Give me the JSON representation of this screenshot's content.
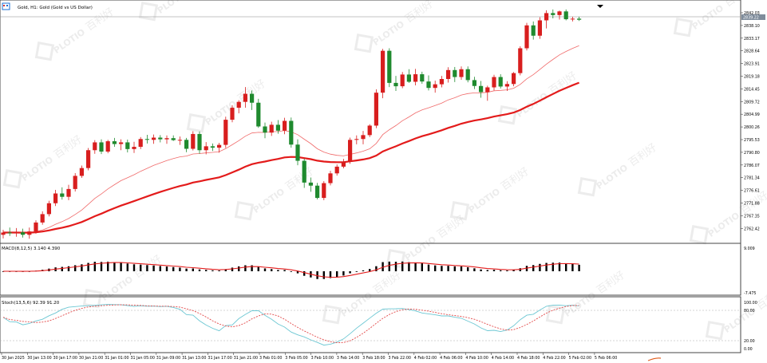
{
  "window": {
    "title": "Gold, H1:  Gold (Gold vs US Dollar)",
    "icon": "window-menu-icon"
  },
  "colors": {
    "bull": "#d81e1e",
    "bear": "#1f8a2e",
    "ma_slow": "#e31b1b",
    "ma_fast": "#f06a6a",
    "macd_hist": "#000000",
    "macd_signal": "#e31b1b",
    "stoch_main": "#6cc7d3",
    "stoch_signal": "#e34a4a",
    "grid_border": "#444444",
    "watermark": "#c9c9c9"
  },
  "watermark": {
    "logo_text": "PLOTIO",
    "cn_text": "百利好"
  },
  "price_axis": {
    "labels": [
      "2842.03",
      "2838.10",
      "2833.17",
      "2828.64",
      "2823.91",
      "2819.18",
      "2814.45",
      "2809.72",
      "2804.99",
      "2800.26",
      "2795.53",
      "2790.80",
      "2786.07",
      "2781.34",
      "2776.61",
      "2771.88",
      "2767.35",
      "2762.42"
    ],
    "current_price": "2839.22"
  },
  "macd": {
    "label": "MACD(8,12,5) 3.140 4.390",
    "axis_labels": [
      "9.009",
      "-7.475"
    ]
  },
  "stoch": {
    "label": "Stoch(13,5,6) 92.39 91.20",
    "axis_labels": [
      "100.00",
      "80.00",
      "20.00",
      "0.00"
    ]
  },
  "time_axis": {
    "labels": [
      "30 Jan 2025",
      "30 Jan 13:00",
      "30 Jan 17:00",
      "30 Jan 21:00",
      "31 Jan 01:00",
      "31 Jan 05:00",
      "31 Jan 09:00",
      "31 Jan 13:00",
      "31 Jan 17:00",
      "31 Jan 21:00",
      "3 Feb 01:00",
      "3 Feb 05:00",
      "3 Feb 10:00",
      "3 Feb 14:00",
      "3 Feb 18:00",
      "3 Feb 22:00",
      "4 Feb 02:00",
      "4 Feb 06:00",
      "4 Feb 10:00",
      "4 Feb 14:00",
      "4 Feb 18:00",
      "4 Feb 22:00",
      "5 Feb 02:00",
      "5 Feb 06:00"
    ]
  },
  "chart_data": {
    "type": "candlestick",
    "ylim": [
      2760.0,
      2844.0
    ],
    "candles": [
      {
        "o": 2762.2,
        "h": 2764.0,
        "l": 2760.9,
        "c": 2763.0
      },
      {
        "o": 2763.0,
        "h": 2764.8,
        "l": 2761.8,
        "c": 2762.8
      },
      {
        "o": 2762.8,
        "h": 2764.6,
        "l": 2761.5,
        "c": 2763.1
      },
      {
        "o": 2763.1,
        "h": 2764.4,
        "l": 2761.2,
        "c": 2762.2
      },
      {
        "o": 2762.2,
        "h": 2764.8,
        "l": 2760.8,
        "c": 2763.4
      },
      {
        "o": 2763.4,
        "h": 2767.4,
        "l": 2762.6,
        "c": 2766.6
      },
      {
        "o": 2766.6,
        "h": 2770.6,
        "l": 2765.8,
        "c": 2769.6
      },
      {
        "o": 2769.6,
        "h": 2774.4,
        "l": 2768.8,
        "c": 2773.5
      },
      {
        "o": 2773.5,
        "h": 2778.3,
        "l": 2772.5,
        "c": 2777.0
      },
      {
        "o": 2777.0,
        "h": 2779.2,
        "l": 2774.8,
        "c": 2775.8
      },
      {
        "o": 2775.8,
        "h": 2780.1,
        "l": 2774.6,
        "c": 2778.6
      },
      {
        "o": 2778.6,
        "h": 2784.3,
        "l": 2777.7,
        "c": 2783.3
      },
      {
        "o": 2783.3,
        "h": 2787.0,
        "l": 2782.6,
        "c": 2786.1
      },
      {
        "o": 2786.1,
        "h": 2793.3,
        "l": 2785.3,
        "c": 2792.5
      },
      {
        "o": 2792.5,
        "h": 2796.1,
        "l": 2791.2,
        "c": 2795.3
      },
      {
        "o": 2795.3,
        "h": 2796.4,
        "l": 2791.1,
        "c": 2792.0
      },
      {
        "o": 2792.0,
        "h": 2796.2,
        "l": 2791.4,
        "c": 2795.7
      },
      {
        "o": 2795.7,
        "h": 2796.9,
        "l": 2793.7,
        "c": 2794.7
      },
      {
        "o": 2794.7,
        "h": 2796.4,
        "l": 2792.5,
        "c": 2795.3
      },
      {
        "o": 2795.3,
        "h": 2796.3,
        "l": 2791.7,
        "c": 2792.9
      },
      {
        "o": 2792.9,
        "h": 2795.5,
        "l": 2791.5,
        "c": 2793.7
      },
      {
        "o": 2793.7,
        "h": 2797.2,
        "l": 2792.9,
        "c": 2796.5
      },
      {
        "o": 2796.5,
        "h": 2798.0,
        "l": 2794.9,
        "c": 2796.2
      },
      {
        "o": 2796.2,
        "h": 2798.1,
        "l": 2794.8,
        "c": 2797.0
      },
      {
        "o": 2797.0,
        "h": 2797.9,
        "l": 2795.3,
        "c": 2796.4
      },
      {
        "o": 2796.4,
        "h": 2797.8,
        "l": 2794.8,
        "c": 2796.8
      },
      {
        "o": 2796.8,
        "h": 2797.8,
        "l": 2795.8,
        "c": 2796.1
      },
      {
        "o": 2796.1,
        "h": 2797.4,
        "l": 2794.4,
        "c": 2796.2
      },
      {
        "o": 2796.2,
        "h": 2796.9,
        "l": 2791.8,
        "c": 2793.0
      },
      {
        "o": 2793.0,
        "h": 2799.3,
        "l": 2792.4,
        "c": 2798.3
      },
      {
        "o": 2798.3,
        "h": 2799.2,
        "l": 2791.2,
        "c": 2792.5
      },
      {
        "o": 2792.5,
        "h": 2795.4,
        "l": 2791.0,
        "c": 2793.9
      },
      {
        "o": 2793.9,
        "h": 2794.9,
        "l": 2792.2,
        "c": 2793.4
      },
      {
        "o": 2793.4,
        "h": 2795.1,
        "l": 2791.6,
        "c": 2794.4
      },
      {
        "o": 2794.4,
        "h": 2804.5,
        "l": 2793.3,
        "c": 2803.4
      },
      {
        "o": 2803.4,
        "h": 2808.6,
        "l": 2802.5,
        "c": 2807.7
      },
      {
        "o": 2807.7,
        "h": 2810.4,
        "l": 2805.7,
        "c": 2809.8
      },
      {
        "o": 2809.8,
        "h": 2815.1,
        "l": 2807.7,
        "c": 2812.7
      },
      {
        "o": 2812.7,
        "h": 2813.9,
        "l": 2806.9,
        "c": 2809.5
      },
      {
        "o": 2809.5,
        "h": 2810.9,
        "l": 2800.5,
        "c": 2801.0
      },
      {
        "o": 2801.0,
        "h": 2802.4,
        "l": 2796.8,
        "c": 2798.8
      },
      {
        "o": 2798.8,
        "h": 2802.7,
        "l": 2797.6,
        "c": 2801.6
      },
      {
        "o": 2801.6,
        "h": 2803.3,
        "l": 2798.4,
        "c": 2799.5
      },
      {
        "o": 2799.5,
        "h": 2804.1,
        "l": 2798.2,
        "c": 2803.0
      },
      {
        "o": 2803.0,
        "h": 2804.2,
        "l": 2793.4,
        "c": 2794.5
      },
      {
        "o": 2794.5,
        "h": 2796.4,
        "l": 2787.1,
        "c": 2788.7
      },
      {
        "o": 2788.7,
        "h": 2789.5,
        "l": 2779.0,
        "c": 2780.9
      },
      {
        "o": 2780.9,
        "h": 2782.7,
        "l": 2777.6,
        "c": 2779.8
      },
      {
        "o": 2779.8,
        "h": 2780.8,
        "l": 2774.9,
        "c": 2775.4
      },
      {
        "o": 2775.4,
        "h": 2781.4,
        "l": 2774.6,
        "c": 2780.7
      },
      {
        "o": 2780.7,
        "h": 2785.1,
        "l": 2779.9,
        "c": 2784.2
      },
      {
        "o": 2784.2,
        "h": 2787.4,
        "l": 2783.4,
        "c": 2786.6
      },
      {
        "o": 2786.6,
        "h": 2789.4,
        "l": 2786.0,
        "c": 2788.4
      },
      {
        "o": 2788.4,
        "h": 2797.0,
        "l": 2787.6,
        "c": 2796.2
      },
      {
        "o": 2796.2,
        "h": 2797.8,
        "l": 2794.6,
        "c": 2796.5
      },
      {
        "o": 2796.5,
        "h": 2799.4,
        "l": 2794.6,
        "c": 2797.9
      },
      {
        "o": 2797.9,
        "h": 2801.8,
        "l": 2797.2,
        "c": 2801.3
      },
      {
        "o": 2801.3,
        "h": 2814.3,
        "l": 2800.4,
        "c": 2813.1
      },
      {
        "o": 2813.1,
        "h": 2828.8,
        "l": 2811.1,
        "c": 2828.1
      },
      {
        "o": 2828.1,
        "h": 2829.0,
        "l": 2815.1,
        "c": 2816.6
      },
      {
        "o": 2816.6,
        "h": 2819.1,
        "l": 2813.7,
        "c": 2815.4
      },
      {
        "o": 2815.4,
        "h": 2820.5,
        "l": 2814.7,
        "c": 2819.6
      },
      {
        "o": 2819.6,
        "h": 2821.5,
        "l": 2816.6,
        "c": 2817.0
      },
      {
        "o": 2817.0,
        "h": 2821.6,
        "l": 2815.7,
        "c": 2819.7
      },
      {
        "o": 2819.7,
        "h": 2820.6,
        "l": 2816.3,
        "c": 2817.1
      },
      {
        "o": 2817.1,
        "h": 2819.3,
        "l": 2813.9,
        "c": 2814.8
      },
      {
        "o": 2814.8,
        "h": 2817.4,
        "l": 2813.1,
        "c": 2816.1
      },
      {
        "o": 2816.1,
        "h": 2819.1,
        "l": 2815.0,
        "c": 2818.0
      },
      {
        "o": 2818.0,
        "h": 2822.2,
        "l": 2816.7,
        "c": 2821.2
      },
      {
        "o": 2821.2,
        "h": 2822.3,
        "l": 2816.9,
        "c": 2818.7
      },
      {
        "o": 2818.7,
        "h": 2822.5,
        "l": 2817.7,
        "c": 2821.5
      },
      {
        "o": 2821.5,
        "h": 2822.5,
        "l": 2816.8,
        "c": 2817.6
      },
      {
        "o": 2817.6,
        "h": 2818.8,
        "l": 2814.4,
        "c": 2815.5
      },
      {
        "o": 2815.5,
        "h": 2817.3,
        "l": 2811.3,
        "c": 2813.3
      },
      {
        "o": 2813.3,
        "h": 2815.6,
        "l": 2810.2,
        "c": 2815.0
      },
      {
        "o": 2815.0,
        "h": 2819.5,
        "l": 2813.9,
        "c": 2818.7
      },
      {
        "o": 2818.7,
        "h": 2819.7,
        "l": 2814.6,
        "c": 2815.3
      },
      {
        "o": 2815.3,
        "h": 2817.2,
        "l": 2813.7,
        "c": 2816.2
      },
      {
        "o": 2816.2,
        "h": 2820.5,
        "l": 2815.4,
        "c": 2820.1
      },
      {
        "o": 2820.1,
        "h": 2829.7,
        "l": 2819.3,
        "c": 2829.0
      },
      {
        "o": 2829.0,
        "h": 2838.1,
        "l": 2828.2,
        "c": 2837.2
      },
      {
        "o": 2837.2,
        "h": 2838.6,
        "l": 2832.1,
        "c": 2833.5
      },
      {
        "o": 2833.5,
        "h": 2840.1,
        "l": 2832.4,
        "c": 2839.0
      },
      {
        "o": 2839.0,
        "h": 2842.6,
        "l": 2836.1,
        "c": 2841.6
      },
      {
        "o": 2841.6,
        "h": 2842.9,
        "l": 2839.7,
        "c": 2840.9
      },
      {
        "o": 2840.9,
        "h": 2842.5,
        "l": 2839.3,
        "c": 2842.2
      },
      {
        "o": 2842.2,
        "h": 2842.9,
        "l": 2839.0,
        "c": 2839.4
      },
      {
        "o": 2839.4,
        "h": 2840.3,
        "l": 2838.6,
        "c": 2839.6
      },
      {
        "o": 2839.6,
        "h": 2840.3,
        "l": 2838.8,
        "c": 2839.22
      }
    ]
  }
}
